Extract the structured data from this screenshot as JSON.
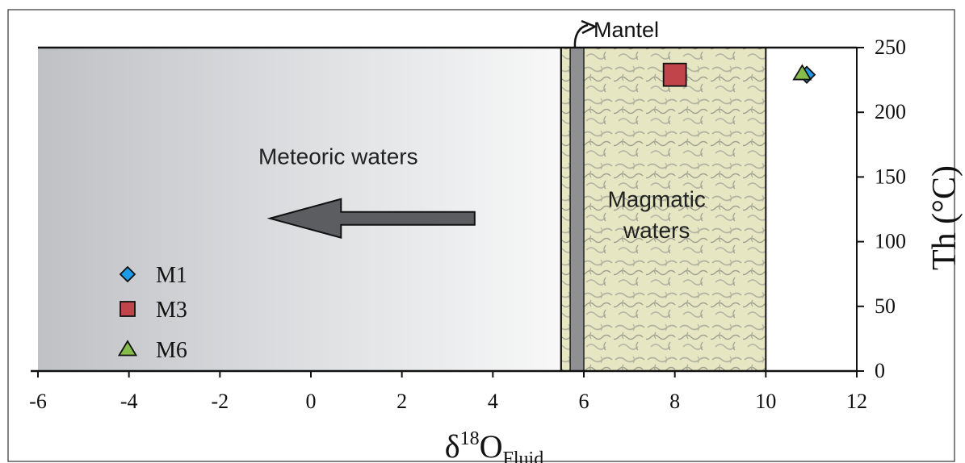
{
  "chart_data": {
    "type": "scatter",
    "xlabel": {
      "main": "δ",
      "sup": "18",
      "o": "O",
      "sub": "Fluid"
    },
    "ylabel": "Th (°C)",
    "xlim": [
      -6,
      12
    ],
    "ylim": [
      0,
      250
    ],
    "x_ticks": [
      -6,
      -4,
      -2,
      0,
      2,
      4,
      6,
      8,
      10,
      12
    ],
    "y_ticks": [
      0,
      50,
      100,
      150,
      200,
      250
    ],
    "regions": [
      {
        "name": "Meteoric waters",
        "x_range": [
          -6,
          5.5
        ],
        "style": "gradient-gray"
      },
      {
        "name": "Mantel",
        "x_range": [
          5.7,
          6.0
        ],
        "style": "gray-band"
      },
      {
        "name": "Magmatic waters",
        "label_lines": [
          "Magmatic",
          "waters"
        ],
        "x_range": [
          5.5,
          10
        ],
        "style": "textured-green"
      }
    ],
    "arrow": {
      "label": "Meteoric waters",
      "from_x": 3.6,
      "to_x": -0.9,
      "y": 118,
      "direction": "left"
    },
    "series": [
      {
        "name": "M1",
        "marker": "diamond",
        "color": "#1e9be8",
        "points": [
          {
            "x": 10.9,
            "y": 229
          }
        ]
      },
      {
        "name": "M3",
        "marker": "square",
        "color": "#c0444a",
        "points": [
          {
            "x": 8.0,
            "y": 229
          }
        ]
      },
      {
        "name": "M6",
        "marker": "triangle",
        "color": "#86bd4a",
        "points": [
          {
            "x": 10.8,
            "y": 230
          }
        ]
      }
    ],
    "legend_position": "bottom-left",
    "grid": false
  }
}
